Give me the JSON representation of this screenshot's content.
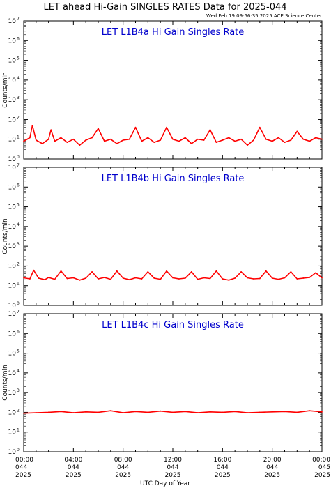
{
  "title": "LET ahead Hi-Gain SINGLES RATES Data for 2025-044",
  "timestamp": "Wed Feb 19 09:56:35 2025 ACE Science Center",
  "xlabel": "UTC Day of Year",
  "ylabel": "Counts/min",
  "colors": {
    "trace": "#ff0000",
    "panel_title": "#0000cc",
    "axis": "#000000"
  },
  "x_ticks": [
    {
      "hour": 0,
      "lines": [
        "00:00",
        "044",
        "2025"
      ]
    },
    {
      "hour": 4,
      "lines": [
        "04:00",
        "044",
        "2025"
      ]
    },
    {
      "hour": 8,
      "lines": [
        "08:00",
        "044",
        "2025"
      ]
    },
    {
      "hour": 12,
      "lines": [
        "12:00",
        "044",
        "2025"
      ]
    },
    {
      "hour": 16,
      "lines": [
        "16:00",
        "044",
        "2025"
      ]
    },
    {
      "hour": 20,
      "lines": [
        "20:00",
        "044",
        "2025"
      ]
    },
    {
      "hour": 24,
      "lines": [
        "00:00",
        "045",
        "2025"
      ]
    }
  ],
  "y_tick_exponents": [
    0,
    1,
    2,
    3,
    4,
    5,
    6,
    7
  ],
  "chart_data": [
    {
      "type": "line",
      "title": "LET L1B4a Hi Gain Singles Rate",
      "ylabel": "Counts/min",
      "xlabel": "UTC Day of Year",
      "xlim_hours": [
        0,
        24
      ],
      "ylim": [
        1,
        10000000
      ],
      "yscale": "log",
      "series": [
        {
          "x_hours": [
            0,
            0.5,
            0.7,
            1,
            1.5,
            2,
            2.2,
            2.5,
            3,
            3.5,
            4,
            4.5,
            5,
            5.5,
            6,
            6.5,
            7,
            7.5,
            8,
            8.5,
            9,
            9.5,
            10,
            10.5,
            11,
            11.5,
            12,
            12.5,
            13,
            13.5,
            14,
            14.5,
            15,
            15.5,
            16,
            16.5,
            17,
            17.5,
            18,
            18.5,
            19,
            19.5,
            20,
            20.5,
            21,
            21.5,
            22,
            22.5,
            23,
            23.5,
            24
          ],
          "values": [
            8,
            12,
            50,
            9,
            6,
            10,
            30,
            8,
            12,
            7,
            10,
            5,
            9,
            12,
            35,
            8,
            10,
            6,
            9,
            10,
            40,
            8,
            12,
            7,
            9,
            40,
            10,
            8,
            12,
            6,
            10,
            9,
            30,
            7,
            9,
            12,
            8,
            10,
            5,
            9,
            40,
            10,
            8,
            12,
            7,
            9,
            25,
            10,
            8,
            12,
            10
          ]
        }
      ]
    },
    {
      "type": "line",
      "title": "LET L1B4b Hi Gain Singles Rate",
      "ylabel": "Counts/min",
      "xlabel": "UTC Day of Year",
      "xlim_hours": [
        0,
        24
      ],
      "ylim": [
        1,
        10000000
      ],
      "yscale": "log",
      "series": [
        {
          "x_hours": [
            0,
            0.5,
            0.8,
            1.2,
            1.7,
            2,
            2.5,
            3,
            3.5,
            4,
            4.5,
            5,
            5.5,
            6,
            6.5,
            7,
            7.5,
            8,
            8.5,
            9,
            9.5,
            10,
            10.5,
            11,
            11.5,
            12,
            12.5,
            13,
            13.5,
            14,
            14.5,
            15,
            15.5,
            16,
            16.5,
            17,
            17.5,
            18,
            18.5,
            19,
            19.5,
            20,
            20.5,
            21,
            21.5,
            22,
            22.5,
            23,
            23.5,
            24
          ],
          "values": [
            25,
            22,
            60,
            24,
            20,
            26,
            21,
            55,
            23,
            25,
            19,
            24,
            50,
            22,
            26,
            21,
            55,
            24,
            20,
            25,
            22,
            50,
            24,
            21,
            55,
            25,
            22,
            24,
            50,
            21,
            25,
            23,
            55,
            22,
            19,
            24,
            50,
            25,
            22,
            23,
            55,
            24,
            21,
            25,
            50,
            22,
            24,
            26,
            45,
            25
          ]
        }
      ]
    },
    {
      "type": "line",
      "title": "LET L1B4c Hi Gain Singles Rate",
      "ylabel": "Counts/min",
      "xlabel": "UTC Day of Year",
      "xlim_hours": [
        0,
        24
      ],
      "ylim": [
        1,
        10000000
      ],
      "yscale": "log",
      "series": [
        {
          "x_hours": [
            0,
            1,
            2,
            3,
            4,
            5,
            6,
            7,
            8,
            9,
            10,
            11,
            12,
            13,
            14,
            15,
            16,
            17,
            18,
            19,
            20,
            21,
            22,
            23,
            24
          ],
          "values": [
            90,
            95,
            100,
            110,
            95,
            105,
            100,
            120,
            95,
            110,
            100,
            115,
            100,
            110,
            95,
            105,
            100,
            110,
            95,
            100,
            105,
            110,
            100,
            120,
            105
          ]
        }
      ]
    }
  ]
}
